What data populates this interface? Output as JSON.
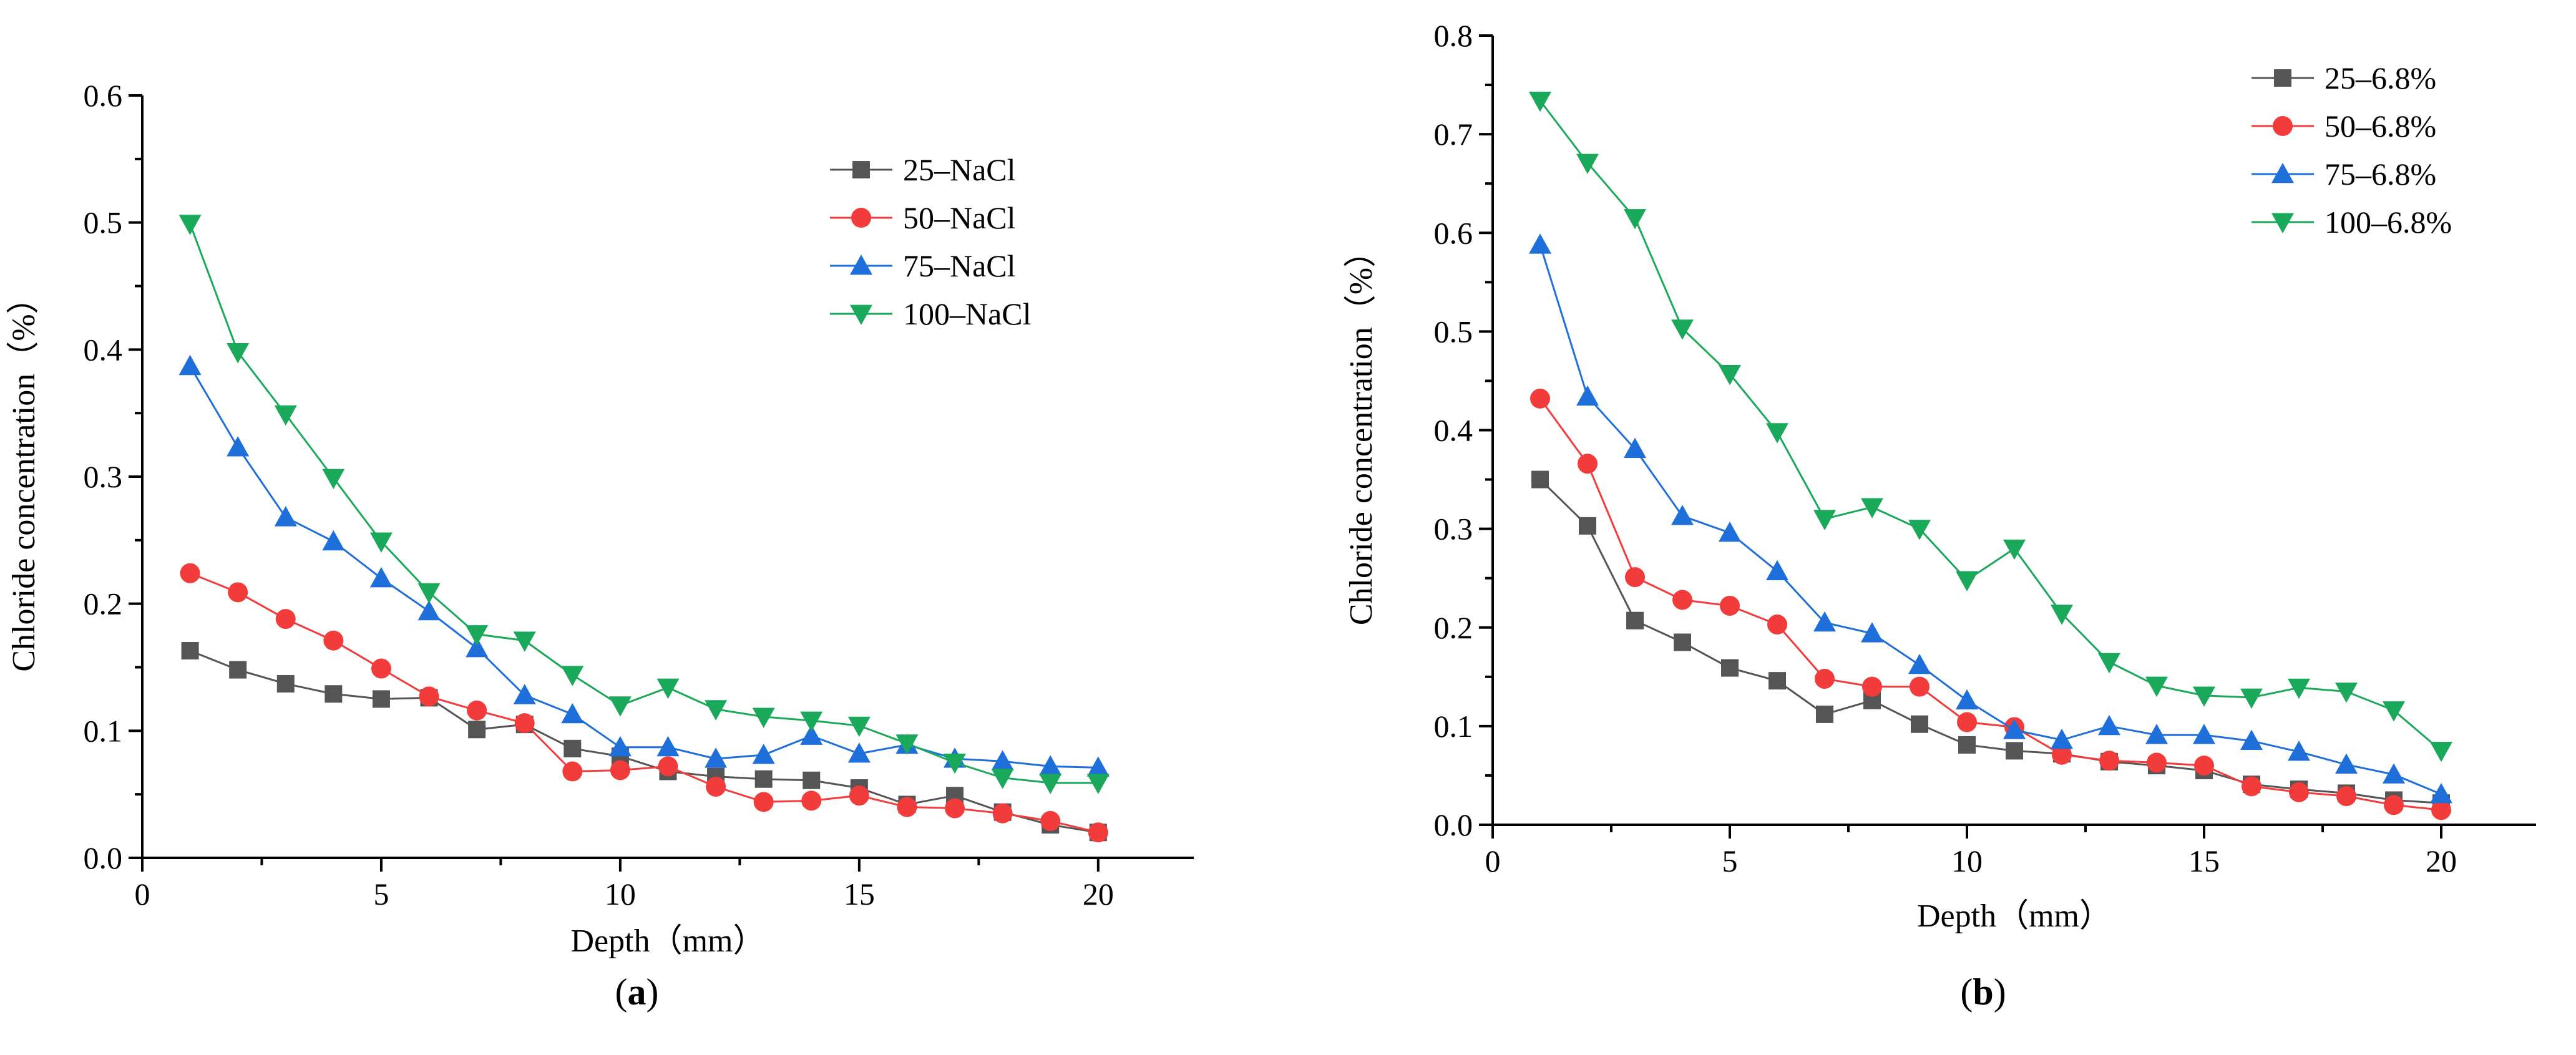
{
  "chart_data": [
    {
      "type": "line",
      "caption": "a",
      "xlabel": "Depth（mm）",
      "ylabel": "Chloride concentration（%）",
      "xlim": [
        0,
        22
      ],
      "ylim": [
        0,
        0.6
      ],
      "x_ticks": [
        0,
        5,
        10,
        15,
        20
      ],
      "y_ticks": [
        0.0,
        0.1,
        0.2,
        0.3,
        0.4,
        0.5,
        0.6
      ],
      "y_decimals": 1,
      "legend_position": "top-right",
      "x": [
        1,
        2,
        3,
        4,
        5,
        6,
        7,
        8,
        9,
        10,
        11,
        12,
        13,
        14,
        15,
        16,
        17,
        18,
        19,
        20
      ],
      "series": [
        {
          "name": "25–NaCl",
          "color": "#555555",
          "marker": "square",
          "values": [
            0.163,
            0.148,
            0.137,
            0.129,
            0.125,
            0.126,
            0.101,
            0.105,
            0.086,
            0.08,
            0.068,
            0.064,
            0.062,
            0.061,
            0.055,
            0.042,
            0.049,
            0.036,
            0.026,
            0.02
          ]
        },
        {
          "name": "50–NaCl",
          "color": "#f23c3c",
          "marker": "circle",
          "values": [
            0.224,
            0.209,
            0.188,
            0.171,
            0.149,
            0.127,
            0.116,
            0.106,
            0.068,
            0.069,
            0.072,
            0.056,
            0.044,
            0.045,
            0.049,
            0.04,
            0.039,
            0.035,
            0.029,
            0.02
          ]
        },
        {
          "name": "75–NaCl",
          "color": "#1f6fdb",
          "marker": "triangle-up",
          "values": [
            0.387,
            0.323,
            0.268,
            0.249,
            0.22,
            0.194,
            0.165,
            0.128,
            0.113,
            0.087,
            0.087,
            0.078,
            0.081,
            0.096,
            0.082,
            0.089,
            0.078,
            0.076,
            0.072,
            0.071
          ]
        },
        {
          "name": "100–NaCl",
          "color": "#1aa85a",
          "marker": "triangle-down",
          "values": [
            0.499,
            0.398,
            0.349,
            0.299,
            0.249,
            0.209,
            0.176,
            0.171,
            0.144,
            0.12,
            0.134,
            0.117,
            0.111,
            0.108,
            0.104,
            0.09,
            0.075,
            0.063,
            0.059,
            0.059
          ]
        }
      ]
    },
    {
      "type": "line",
      "caption": "b",
      "xlabel": "Depth（mm）",
      "ylabel": "Chloride concentration（%）",
      "xlim": [
        0,
        22
      ],
      "ylim": [
        0,
        0.8
      ],
      "x_ticks": [
        0,
        5,
        10,
        15,
        20
      ],
      "y_ticks": [
        0.0,
        0.1,
        0.2,
        0.3,
        0.4,
        0.5,
        0.6,
        0.7,
        0.8
      ],
      "y_decimals": 1,
      "legend_position": "top-right",
      "x": [
        1,
        2,
        3,
        4,
        5,
        6,
        7,
        8,
        9,
        10,
        11,
        12,
        13,
        14,
        15,
        16,
        17,
        18,
        19,
        20
      ],
      "series": [
        {
          "name": "25–6.8%",
          "color": "#555555",
          "marker": "square",
          "values": [
            0.35,
            0.303,
            0.207,
            0.185,
            0.159,
            0.146,
            0.112,
            0.126,
            0.102,
            0.081,
            0.075,
            0.072,
            0.064,
            0.06,
            0.055,
            0.041,
            0.036,
            0.032,
            0.025,
            0.022
          ]
        },
        {
          "name": "50–6.8%",
          "color": "#f23c3c",
          "marker": "circle",
          "values": [
            0.432,
            0.366,
            0.251,
            0.228,
            0.222,
            0.203,
            0.148,
            0.14,
            0.14,
            0.104,
            0.099,
            0.071,
            0.065,
            0.063,
            0.06,
            0.039,
            0.033,
            0.029,
            0.02,
            0.015
          ]
        },
        {
          "name": "75–6.8%",
          "color": "#1f6fdb",
          "marker": "triangle-up",
          "values": [
            0.588,
            0.434,
            0.381,
            0.313,
            0.296,
            0.257,
            0.205,
            0.194,
            0.162,
            0.126,
            0.096,
            0.086,
            0.1,
            0.091,
            0.091,
            0.085,
            0.074,
            0.061,
            0.051,
            0.031
          ]
        },
        {
          "name": "100–6.8%",
          "color": "#1aa85a",
          "marker": "triangle-down",
          "values": [
            0.734,
            0.671,
            0.615,
            0.503,
            0.457,
            0.398,
            0.31,
            0.322,
            0.3,
            0.248,
            0.28,
            0.214,
            0.165,
            0.141,
            0.131,
            0.129,
            0.139,
            0.135,
            0.116,
            0.075
          ]
        }
      ]
    }
  ]
}
